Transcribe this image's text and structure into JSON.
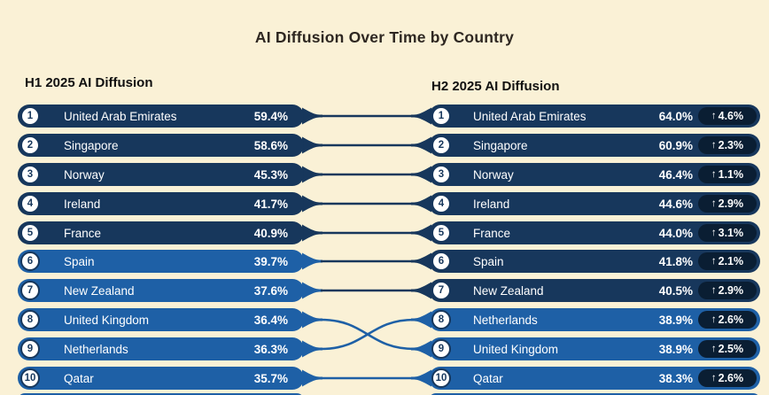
{
  "title": "AI Diffusion Over Time by Country",
  "icons": {
    "up_arrow": "↑"
  },
  "colors": {
    "background": "#FAF1D6",
    "dark_row": "#17375C",
    "light_row": "#1E60A6",
    "badge": "#0A1E33",
    "circle_fill": "#FFFFFF",
    "circle_ring": "#17375C",
    "row_text": "#FFFFFF",
    "title_color": "#2E2721",
    "header_color": "#101010"
  },
  "chart_data": {
    "type": "table",
    "subtype": "slope-ranking",
    "title": "AI Diffusion Over Time by Country",
    "value_color_threshold": 40,
    "layout": {
      "grid": false,
      "legend": "none",
      "columns": 2
    },
    "left": {
      "header": "H1 2025 AI Diffusion",
      "rows": [
        {
          "rank": "1",
          "country": "United Arab Emirates",
          "value": "59.4%"
        },
        {
          "rank": "2",
          "country": "Singapore",
          "value": "58.6%"
        },
        {
          "rank": "3",
          "country": "Norway",
          "value": "45.3%"
        },
        {
          "rank": "4",
          "country": "Ireland",
          "value": "41.7%"
        },
        {
          "rank": "5",
          "country": "France",
          "value": "40.9%"
        },
        {
          "rank": "6",
          "country": "Spain",
          "value": "39.7%"
        },
        {
          "rank": "7",
          "country": "New Zealand",
          "value": "37.6%"
        },
        {
          "rank": "8",
          "country": "United Kingdom",
          "value": "36.4%"
        },
        {
          "rank": "9",
          "country": "Netherlands",
          "value": "36.3%"
        },
        {
          "rank": "10",
          "country": "Qatar",
          "value": "35.7%"
        }
      ]
    },
    "right": {
      "header": "H2 2025 AI Diffusion",
      "rows": [
        {
          "rank": "1",
          "country": "United Arab Emirates",
          "value": "64.0%",
          "change": "4.6%"
        },
        {
          "rank": "2",
          "country": "Singapore",
          "value": "60.9%",
          "change": "2.3%"
        },
        {
          "rank": "3",
          "country": "Norway",
          "value": "46.4%",
          "change": "1.1%"
        },
        {
          "rank": "4",
          "country": "Ireland",
          "value": "44.6%",
          "change": "2.9%"
        },
        {
          "rank": "5",
          "country": "France",
          "value": "44.0%",
          "change": "3.1%"
        },
        {
          "rank": "6",
          "country": "Spain",
          "value": "41.8%",
          "change": "2.1%"
        },
        {
          "rank": "7",
          "country": "New Zealand",
          "value": "40.5%",
          "change": "2.9%"
        },
        {
          "rank": "8",
          "country": "Netherlands",
          "value": "38.9%",
          "change": "2.6%"
        },
        {
          "rank": "9",
          "country": "United Kingdom",
          "value": "38.9%",
          "change": "2.5%"
        },
        {
          "rank": "10",
          "country": "Qatar",
          "value": "38.3%",
          "change": "2.6%"
        }
      ]
    },
    "links": [
      [
        1,
        1
      ],
      [
        2,
        2
      ],
      [
        3,
        3
      ],
      [
        4,
        4
      ],
      [
        5,
        5
      ],
      [
        6,
        6
      ],
      [
        7,
        7
      ],
      [
        8,
        9
      ],
      [
        9,
        8
      ],
      [
        10,
        10
      ]
    ]
  }
}
